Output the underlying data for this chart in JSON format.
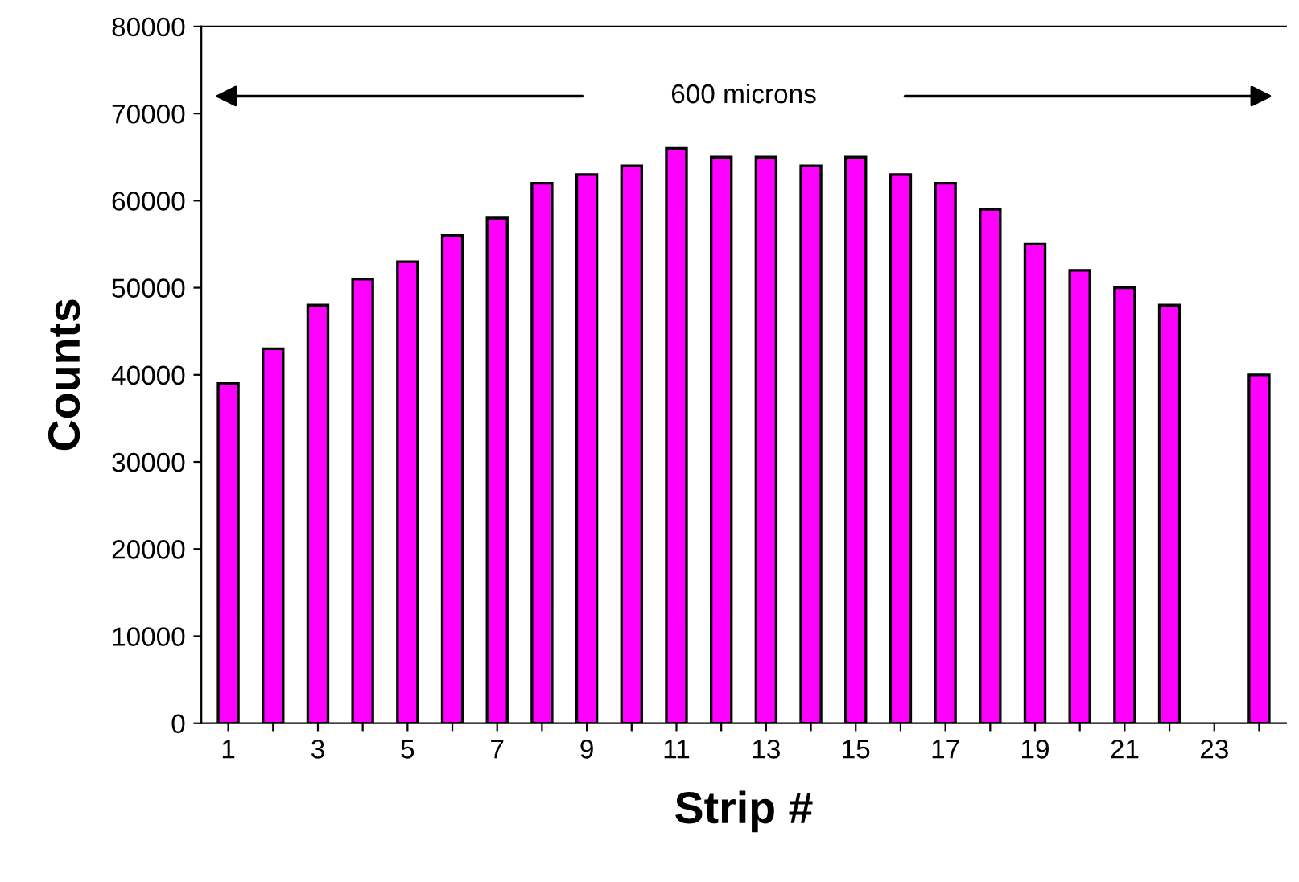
{
  "chart_data": {
    "type": "bar",
    "xlabel": "Strip #",
    "ylabel": "Counts",
    "categories": [
      "1",
      null,
      "3",
      null,
      "5",
      null,
      "7",
      null,
      "9",
      null,
      "11",
      null,
      "13",
      null,
      "15",
      null,
      "17",
      null,
      "19",
      null,
      "21",
      null,
      "23",
      null
    ],
    "series": [
      {
        "color": "#ff00ff",
        "values": [
          39000,
          43000,
          48000,
          51000,
          53000,
          56000,
          58000,
          62000,
          63000,
          64000,
          66000,
          65000,
          65000,
          64000,
          65000,
          63000,
          62000,
          59000,
          55000,
          52000,
          50000,
          48000,
          null,
          40000
        ]
      }
    ],
    "ylim": [
      0,
      80000
    ],
    "yticks": [
      0,
      10000,
      20000,
      30000,
      40000,
      50000,
      60000,
      70000,
      80000
    ],
    "annotations": [
      "600 microns"
    ],
    "grid": false,
    "legend": false
  }
}
